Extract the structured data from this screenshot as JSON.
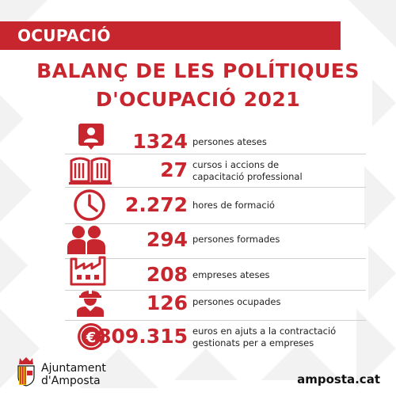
{
  "banner": {
    "label": "OCUPACIÓ"
  },
  "title": {
    "line1": "BALANÇ DE LES POLÍTIQUES",
    "line2": "D'OCUPACIÓ 2021"
  },
  "stats": [
    {
      "icon": "person-id-icon",
      "value": "1324",
      "desc_line1": "persones ateses",
      "desc_line2": ""
    },
    {
      "icon": "open-book-icon",
      "value": "27",
      "desc_line1": "cursos i accions de",
      "desc_line2": "capacitació professional"
    },
    {
      "icon": "clock-icon",
      "value": "2.272",
      "desc_line1": "hores de formació",
      "desc_line2": ""
    },
    {
      "icon": "people-icon",
      "value": "294",
      "desc_line1": "persones formades",
      "desc_line2": ""
    },
    {
      "icon": "factory-icon",
      "value": "208",
      "desc_line1": "empreses ateses",
      "desc_line2": ""
    },
    {
      "icon": "worker-icon",
      "value": "126",
      "desc_line1": "persones ocupades",
      "desc_line2": ""
    },
    {
      "icon": "euro-coin-icon",
      "value": "809.315",
      "desc_line1": "euros en ajuts a la contractació",
      "desc_line2": "gestionats per a empreses"
    }
  ],
  "footer": {
    "org_line1": "Ajuntament",
    "org_line2": "d'Amposta",
    "url": "amposta.cat"
  },
  "colors": {
    "accent": "#c8262f",
    "text": "#222222",
    "divider": "#d0d0d0"
  }
}
